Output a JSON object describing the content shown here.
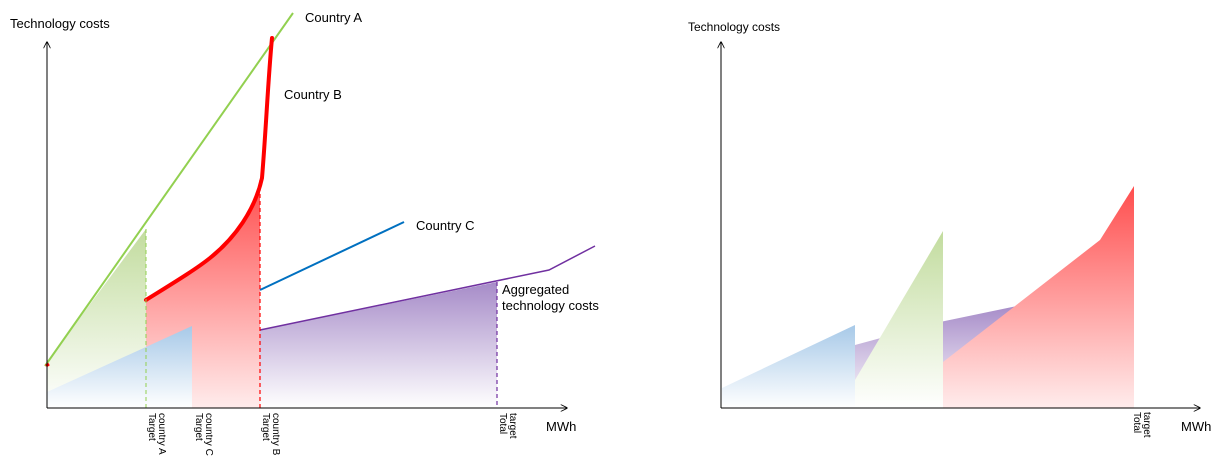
{
  "left": {
    "y_axis_label": "Technology costs",
    "x_axis_label": "MWh",
    "series_labels": {
      "a": "Country A",
      "b": "Country B",
      "c": "Country C",
      "agg_line1": "Aggregated",
      "agg_line2": "technology costs"
    },
    "targets": [
      {
        "line1": "Target",
        "line2": "country A"
      },
      {
        "line1": "Target",
        "line2": "country C"
      },
      {
        "line1": "Target",
        "line2": "country B"
      },
      {
        "line1": "Total",
        "line2": "target"
      }
    ]
  },
  "right": {
    "y_axis_label": "Technology costs",
    "x_axis_label": "MWh",
    "target": {
      "line1": "Total",
      "line2": "target"
    }
  },
  "colors": {
    "country_a": "#92d050",
    "country_b": "#ff0000",
    "country_c": "#0070c0",
    "aggregated": "#7030a0",
    "fill_green": "#c4dea0",
    "fill_red": "#ff5050",
    "fill_blue": "#a9cbe8",
    "fill_purple": "#a78cc9"
  }
}
